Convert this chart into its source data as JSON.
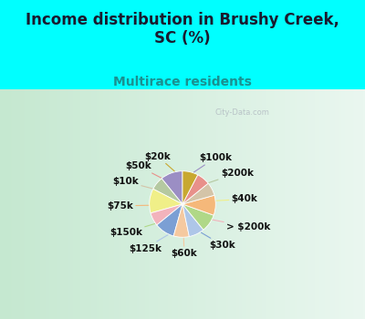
{
  "title": "Income distribution in Brushy Creek,\nSC (%)",
  "subtitle": "Multirace residents",
  "background_color": "#00FFFF",
  "watermark": "City-Data.com",
  "slices": [
    {
      "label": "$100k",
      "value": 10,
      "color": "#9b8ec4"
    },
    {
      "label": "$200k",
      "value": 6,
      "color": "#b5c9a1"
    },
    {
      "label": "$40k",
      "value": 11,
      "color": "#f0ef88"
    },
    {
      "label": "> $200k",
      "value": 6,
      "color": "#f2b3bc"
    },
    {
      "label": "$30k",
      "value": 9,
      "color": "#7b9fd4"
    },
    {
      "label": "$60k",
      "value": 7,
      "color": "#f5c9a0"
    },
    {
      "label": "$125k",
      "value": 7,
      "color": "#aec6e8"
    },
    {
      "label": "$150k",
      "value": 8,
      "color": "#b0d888"
    },
    {
      "label": "$75k",
      "value": 9,
      "color": "#f5b87a"
    },
    {
      "label": "$10k",
      "value": 6,
      "color": "#d4c4a8"
    },
    {
      "label": "$50k",
      "value": 6,
      "color": "#e8908a"
    },
    {
      "label": "$20k",
      "value": 7,
      "color": "#c8a830"
    }
  ],
  "label_fontsize": 7.5,
  "title_fontsize": 12,
  "subtitle_fontsize": 10,
  "title_color": "#1a1a2e",
  "subtitle_color": "#1a9090",
  "chart_bg_left": "#c5e8d0",
  "chart_bg_right": "#eaf7f0"
}
